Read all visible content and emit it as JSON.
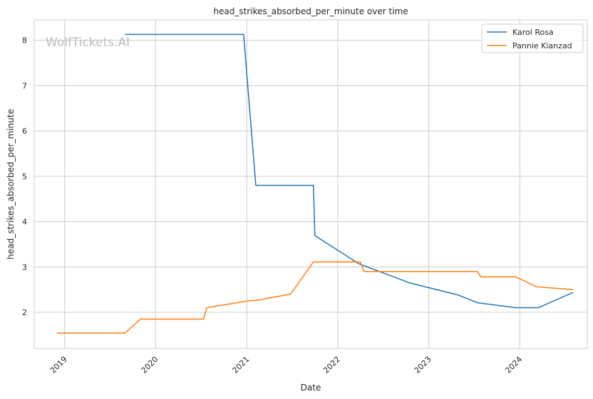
{
  "watermark": "WolfTickets.AI",
  "chart_data": {
    "type": "line",
    "title": "head_strikes_absorbed_per_minute over time",
    "xlabel": "Date",
    "ylabel": "head_strikes_absorbed_per_minute",
    "x_ticks": [
      "2019",
      "2020",
      "2021",
      "2022",
      "2023",
      "2024"
    ],
    "y_ticks": [
      "2",
      "3",
      "4",
      "5",
      "6",
      "7",
      "8"
    ],
    "xlim": [
      "2018-09-01",
      "2024-09-28"
    ],
    "ylim": [
      1.2,
      8.45
    ],
    "grid": true,
    "legend_position": "top-right",
    "series": [
      {
        "name": "Karol Rosa",
        "color": "#1f77b4",
        "points": [
          [
            "2019-08-31",
            8.13
          ],
          [
            "2020-12-19",
            8.13
          ],
          [
            "2021-02-06",
            4.8
          ],
          [
            "2021-09-25",
            4.8
          ],
          [
            "2021-10-01",
            3.69
          ],
          [
            "2022-03-26",
            3.07
          ],
          [
            "2022-10-15",
            2.65
          ],
          [
            "2023-04-29",
            2.38
          ],
          [
            "2023-07-15",
            2.21
          ],
          [
            "2023-12-16",
            2.1
          ],
          [
            "2024-03-16",
            2.1
          ],
          [
            "2024-08-03",
            2.44
          ]
        ]
      },
      {
        "name": "Pannie Kianzad",
        "color": "#ff7f0e",
        "points": [
          [
            "2018-12-01",
            1.54
          ],
          [
            "2019-08-31",
            1.54
          ],
          [
            "2019-11-02",
            1.85
          ],
          [
            "2020-07-11",
            1.85
          ],
          [
            "2020-07-25",
            2.1
          ],
          [
            "2021-01-16",
            2.26
          ],
          [
            "2021-02-06",
            2.26
          ],
          [
            "2021-06-26",
            2.4
          ],
          [
            "2021-09-25",
            3.11
          ],
          [
            "2022-04-02",
            3.11
          ],
          [
            "2022-04-16",
            2.9
          ],
          [
            "2023-07-15",
            2.9
          ],
          [
            "2023-07-29",
            2.78
          ],
          [
            "2023-12-16",
            2.78
          ],
          [
            "2024-03-09",
            2.56
          ],
          [
            "2024-08-03",
            2.5
          ]
        ]
      }
    ]
  }
}
